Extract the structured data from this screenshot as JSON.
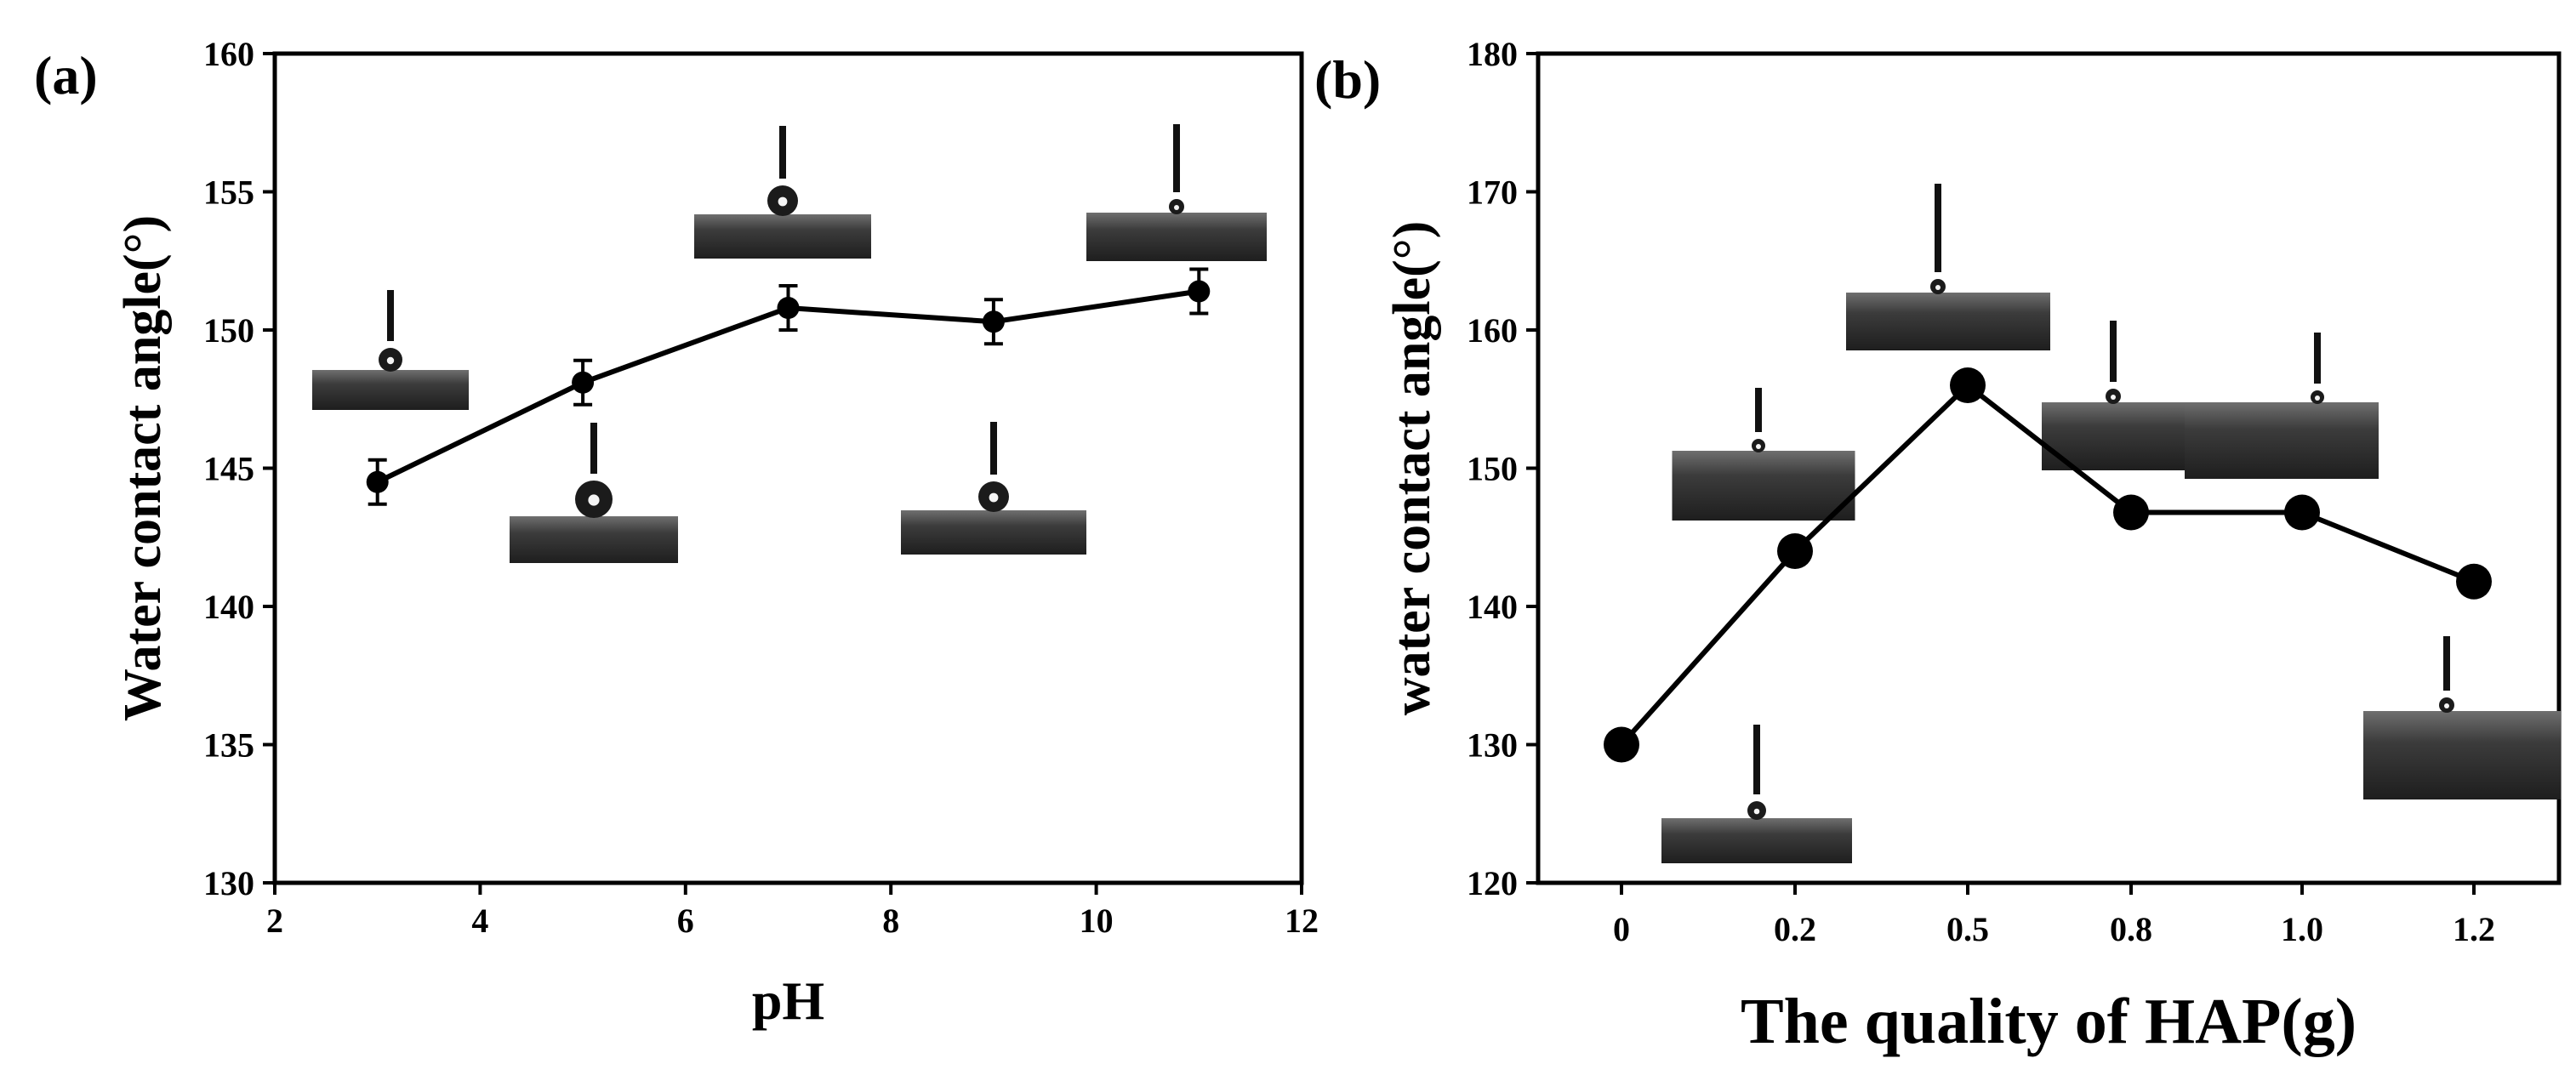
{
  "chart_data": [
    {
      "panel": "(a)",
      "type": "line",
      "xlabel": "pH",
      "ylabel": "Water contact angle(°)",
      "xlim": [
        2,
        12
      ],
      "ylim": [
        130,
        160
      ],
      "xticks": [
        2,
        4,
        6,
        8,
        10,
        12
      ],
      "yticks": [
        130,
        135,
        140,
        145,
        150,
        155,
        160
      ],
      "x": [
        3,
        5,
        7,
        9,
        11
      ],
      "y": [
        144.5,
        148.1,
        150.8,
        150.3,
        151.4
      ],
      "error": [
        0.8,
        0.8,
        0.8,
        0.8,
        0.8
      ],
      "marker": "circle",
      "inset_droplet_images": 5
    },
    {
      "panel": "(b)",
      "type": "line",
      "xlabel": "The quality of HAP(g)",
      "ylabel": "water contact angle(°)",
      "categories": [
        "0",
        "0.2",
        "0.5",
        "0.8",
        "1.0",
        "1.2"
      ],
      "ylim": [
        120,
        180
      ],
      "yticks": [
        120,
        130,
        140,
        150,
        160,
        170,
        180
      ],
      "values": [
        130,
        144,
        156,
        146.8,
        146.8,
        141.8
      ],
      "marker": "circle",
      "inset_droplet_images": 6
    }
  ]
}
